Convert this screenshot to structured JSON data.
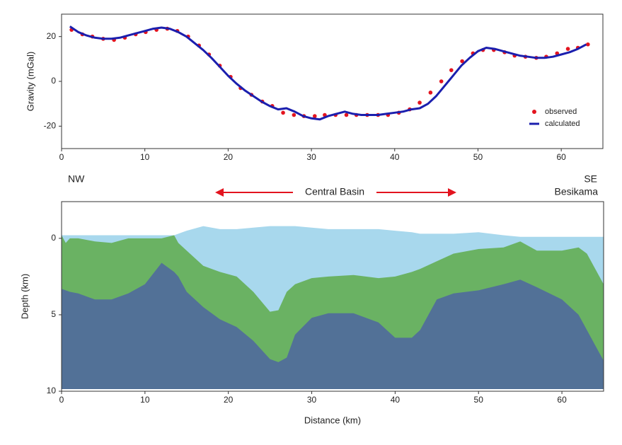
{
  "chart_data": [
    {
      "type": "line",
      "y_label": "Gravity (mGal)",
      "xlim": [
        0,
        65
      ],
      "xticks": [
        0,
        10,
        20,
        30,
        40,
        50,
        60
      ],
      "ylim": [
        -30,
        30
      ],
      "yticks": [
        -20,
        0,
        20
      ],
      "legend": "lower right",
      "series": [
        {
          "name": "observed",
          "color": "#e3141f",
          "style": "markers",
          "x": [
            1.2,
            2.5,
            3.7,
            5,
            6.3,
            7.6,
            8.9,
            10.1,
            11.4,
            12.7,
            13.9,
            15.2,
            16.5,
            17.7,
            19,
            20.3,
            21.5,
            22.8,
            24.1,
            25.3,
            26.6,
            27.9,
            29.1,
            30.4,
            31.6,
            32.9,
            34.2,
            35.4,
            36.7,
            38,
            39.2,
            40.5,
            41.8,
            43,
            44.3,
            45.6,
            46.8,
            48.1,
            49.4,
            50.6,
            51.9,
            53.2,
            54.4,
            55.7,
            57,
            58.2,
            59.5,
            60.8,
            62,
            63.2
          ],
          "values": [
            23,
            21,
            20,
            19,
            18.5,
            19.5,
            21,
            22,
            23,
            23.5,
            22.5,
            20,
            16,
            12,
            7,
            2,
            -3,
            -6,
            -9,
            -11,
            -14,
            -15,
            -15.5,
            -15.5,
            -15,
            -15,
            -15,
            -15,
            -15,
            -15,
            -15,
            -14,
            -12.5,
            -9.5,
            -5,
            0,
            5,
            9,
            12.5,
            14,
            14,
            13,
            11.5,
            11,
            10.5,
            11,
            12.5,
            14.5,
            15,
            16.5
          ]
        },
        {
          "name": "calculated",
          "color": "#1b1fae",
          "style": "line",
          "x": [
            1,
            2,
            3,
            4,
            5,
            6,
            7,
            8,
            9,
            10,
            11,
            12,
            13,
            14,
            15,
            16,
            17,
            18,
            19,
            20,
            21,
            22,
            23,
            24,
            25,
            26,
            27,
            28,
            29,
            30,
            31,
            32,
            33,
            34,
            35,
            36,
            37,
            38,
            39,
            40,
            41,
            42,
            43,
            44,
            45,
            46,
            47,
            48,
            49,
            50,
            51,
            52,
            53,
            54,
            55,
            56,
            57,
            58,
            59,
            60,
            61,
            62,
            63
          ],
          "values": [
            24.5,
            22,
            20.5,
            19.5,
            19,
            19,
            19.5,
            20.5,
            21.5,
            22.5,
            23.5,
            24,
            23.5,
            22,
            20,
            17,
            14,
            10.5,
            6.5,
            2.5,
            -1,
            -4,
            -6.5,
            -9,
            -11,
            -12.5,
            -12,
            -13.5,
            -15.5,
            -16.5,
            -17,
            -15.5,
            -14.5,
            -13.5,
            -14.5,
            -15,
            -15,
            -15,
            -14.5,
            -14,
            -13.5,
            -12.5,
            -12,
            -10,
            -6.5,
            -2,
            2.5,
            7,
            10.5,
            13.5,
            15,
            14.5,
            13.5,
            12.5,
            11.5,
            11,
            10.5,
            10.5,
            11,
            12,
            13,
            14.5,
            16.5
          ]
        }
      ]
    },
    {
      "type": "area",
      "x_label": "Distance (km)",
      "y_label": "Depth (km)",
      "annotations": [
        "NW",
        "SE",
        "Central Basin",
        "Besikama"
      ],
      "xlim": [
        0,
        65
      ],
      "xticks": [
        0,
        10,
        20,
        30,
        40,
        50,
        60
      ],
      "ylim": [
        -2.4,
        10
      ],
      "yticks": [
        0,
        5,
        10
      ],
      "y_inverted": true,
      "x": [
        0,
        0.5,
        1,
        2,
        4,
        6,
        8,
        10,
        12,
        13.5,
        14,
        15,
        17,
        19,
        21,
        23,
        25,
        26,
        27,
        28,
        30,
        32,
        35,
        38,
        40,
        42,
        43,
        45,
        47,
        50,
        53,
        55,
        57,
        60,
        62,
        63,
        64,
        65
      ],
      "series": [
        {
          "color": "#a8d8ed",
          "values": [
            -0.2,
            -0.2,
            -0.2,
            -0.2,
            -0.2,
            -0.2,
            -0.2,
            -0.2,
            -0.2,
            -0.2,
            -0.3,
            -0.5,
            -0.8,
            -0.6,
            -0.6,
            -0.7,
            -0.8,
            -0.8,
            -0.8,
            -0.8,
            -0.7,
            -0.6,
            -0.6,
            -0.6,
            -0.5,
            -0.4,
            -0.3,
            -0.3,
            -0.3,
            -0.4,
            -0.2,
            -0.1,
            -0.1,
            -0.1,
            -0.1,
            -0.1,
            -0.1,
            -0.1
          ]
        },
        {
          "color": "#6ab263",
          "values": [
            -0.2,
            0.3,
            0,
            0,
            0.2,
            0.3,
            0,
            0,
            0,
            -0.2,
            0.3,
            0.8,
            1.8,
            2.2,
            2.5,
            3.5,
            4.8,
            4.7,
            3.5,
            3,
            2.6,
            2.5,
            2.4,
            2.6,
            2.5,
            2.2,
            2,
            1.5,
            1,
            0.7,
            0.6,
            0.2,
            0.8,
            0.8,
            0.6,
            1,
            2,
            3
          ]
        },
        {
          "color": "#527197",
          "values": [
            3.3,
            3.4,
            3.5,
            3.6,
            4,
            4,
            3.6,
            3,
            1.6,
            2.2,
            2.5,
            3.5,
            4.5,
            5.3,
            5.8,
            6.7,
            7.9,
            8.1,
            7.8,
            6.3,
            5.2,
            4.9,
            4.9,
            5.5,
            6.5,
            6.5,
            6,
            4,
            3.6,
            3.4,
            3,
            2.7,
            3.2,
            4,
            5,
            6,
            7,
            8
          ]
        }
      ]
    }
  ]
}
